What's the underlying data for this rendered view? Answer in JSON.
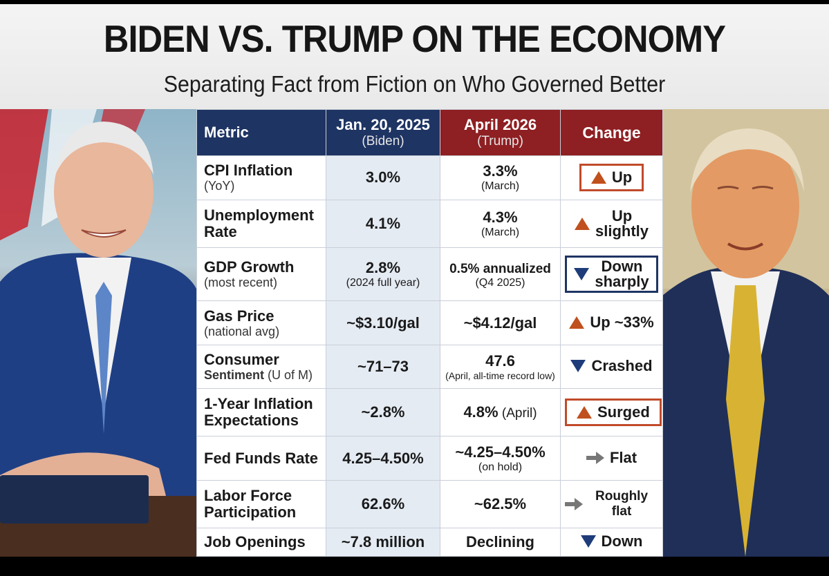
{
  "header": {
    "title": "BIDEN VS. TRUMP ON THE ECONOMY",
    "subtitle": "Separating Fact from Fiction on Who Governed Better"
  },
  "table": {
    "columns": {
      "metric": "Metric",
      "biden_date": "Jan. 20, 2025",
      "biden_name": "(Biden)",
      "trump_date": "April 2026",
      "trump_name": "(Trump)",
      "change": "Change"
    },
    "rows": [
      {
        "metric": "CPI Inflation",
        "metric_sub": "(YoY)",
        "biden": "3.0%",
        "trump": "3.3%",
        "trump_sub": "(March)",
        "change": "Up",
        "direction": "up"
      },
      {
        "metric": "Unemployment",
        "metric_sub": "Rate",
        "biden": "4.1%",
        "trump": "4.3%",
        "trump_sub": "(March)",
        "change_l1": "Up",
        "change_l2": "slightly",
        "direction": "up"
      },
      {
        "metric": "GDP Growth",
        "metric_sub": "(most recent)",
        "biden": "2.8%",
        "biden_sub": "(2024 full year)",
        "trump": "0.5% annualized",
        "trump_sub": "(Q4 2025)",
        "change_l1": "Down",
        "change_l2": "sharply",
        "direction": "down"
      },
      {
        "metric": "Gas Price",
        "metric_sub": "(national avg)",
        "biden": "~$3.10/gal",
        "trump": "~$4.12/gal",
        "change": "Up ~33%",
        "direction": "up"
      },
      {
        "metric": "Consumer",
        "metric_sub_bold": "Sentiment",
        "metric_sub": " (U of M)",
        "biden": "~71–73",
        "trump": "47.6",
        "trump_sub": "(April, all-time record low)",
        "change": "Crashed",
        "direction": "down"
      },
      {
        "metric": "1-Year Inflation",
        "metric_l2": "Expectations",
        "biden": "~2.8%",
        "trump": "4.8%",
        "trump_inline": " (April)",
        "change": "Surged",
        "direction": "up"
      },
      {
        "metric": "Fed Funds Rate",
        "biden": "4.25–4.50%",
        "trump": "~4.25–4.50%",
        "trump_sub": "(on hold)",
        "change": "Flat",
        "direction": "flat"
      },
      {
        "metric": "Labor Force",
        "metric_l2": "Participation",
        "biden": "62.6%",
        "trump": "~62.5%",
        "change": "Roughly flat",
        "direction": "flat"
      },
      {
        "metric": "Job Openings",
        "biden": "~7.8 million",
        "trump": "Declining",
        "change": "Down",
        "direction": "down"
      }
    ]
  },
  "colors": {
    "navy": "#1e3463",
    "red": "#8e1f22",
    "up_arrow": "#c0501d",
    "down_arrow": "#1e3c7a"
  }
}
